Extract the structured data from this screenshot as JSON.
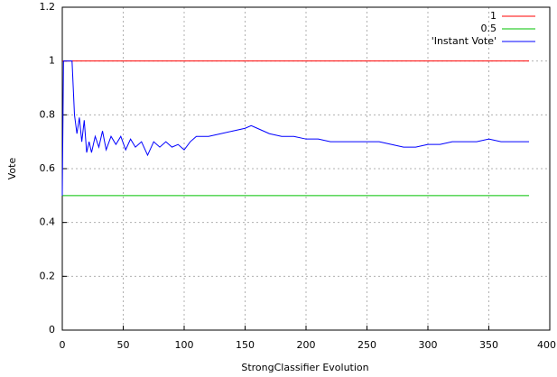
{
  "chart_data": {
    "type": "line",
    "x_label": "StrongClassifier Evolution",
    "y_label": "Vote",
    "xlim": [
      0,
      400
    ],
    "ylim": [
      0,
      1.2
    ],
    "xticks": [
      0,
      50,
      100,
      150,
      200,
      250,
      300,
      350,
      400
    ],
    "yticks": [
      0,
      0.2,
      0.4,
      0.6,
      0.8,
      1,
      1.2
    ],
    "grid": true,
    "legend": "top-right",
    "series": [
      {
        "name": "1",
        "color": "#ff0000",
        "x": [
          0,
          383
        ],
        "values": [
          1,
          1
        ]
      },
      {
        "name": "0.5",
        "color": "#00c000",
        "x": [
          0,
          383
        ],
        "values": [
          0.5,
          0.5
        ]
      },
      {
        "name": "'Instant Vote'",
        "color": "#0000ff",
        "x": [
          0,
          1,
          8,
          10,
          12,
          14,
          16,
          18,
          20,
          22,
          24,
          27,
          30,
          33,
          36,
          40,
          44,
          48,
          52,
          56,
          60,
          65,
          70,
          75,
          80,
          85,
          90,
          95,
          100,
          105,
          110,
          120,
          130,
          140,
          150,
          155,
          160,
          170,
          180,
          190,
          200,
          210,
          220,
          230,
          240,
          250,
          260,
          270,
          280,
          290,
          300,
          310,
          320,
          330,
          340,
          350,
          360,
          370,
          380,
          383
        ],
        "values": [
          0.5,
          1,
          1,
          0.8,
          0.73,
          0.79,
          0.7,
          0.78,
          0.66,
          0.7,
          0.66,
          0.72,
          0.68,
          0.74,
          0.67,
          0.72,
          0.69,
          0.72,
          0.67,
          0.71,
          0.68,
          0.7,
          0.65,
          0.7,
          0.68,
          0.7,
          0.68,
          0.69,
          0.67,
          0.7,
          0.72,
          0.72,
          0.73,
          0.74,
          0.75,
          0.76,
          0.75,
          0.73,
          0.72,
          0.72,
          0.71,
          0.71,
          0.7,
          0.7,
          0.7,
          0.7,
          0.7,
          0.69,
          0.68,
          0.68,
          0.69,
          0.69,
          0.7,
          0.7,
          0.7,
          0.71,
          0.7,
          0.7,
          0.7,
          0.7
        ]
      }
    ]
  }
}
